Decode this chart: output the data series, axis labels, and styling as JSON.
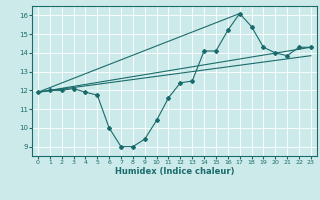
{
  "title": "",
  "xlabel": "Humidex (Indice chaleur)",
  "ylabel": "",
  "bg_color": "#cdeaea",
  "line_color": "#1a6b6b",
  "grid_color": "#ffffff",
  "xlim": [
    -0.5,
    23.5
  ],
  "ylim": [
    8.5,
    16.5
  ],
  "xticks": [
    0,
    1,
    2,
    3,
    4,
    5,
    6,
    7,
    8,
    9,
    10,
    11,
    12,
    13,
    14,
    15,
    16,
    17,
    18,
    19,
    20,
    21,
    22,
    23
  ],
  "yticks": [
    9,
    10,
    11,
    12,
    13,
    14,
    15,
    16
  ],
  "series": [
    [
      0,
      11.9
    ],
    [
      1,
      12.0
    ],
    [
      2,
      12.0
    ],
    [
      3,
      12.1
    ],
    [
      4,
      11.9
    ],
    [
      5,
      11.75
    ],
    [
      6,
      10.0
    ],
    [
      7,
      9.0
    ],
    [
      8,
      9.0
    ],
    [
      9,
      9.4
    ],
    [
      10,
      10.4
    ],
    [
      11,
      11.6
    ],
    [
      12,
      12.4
    ],
    [
      13,
      12.5
    ],
    [
      14,
      14.1
    ],
    [
      15,
      14.1
    ],
    [
      16,
      15.2
    ],
    [
      17,
      16.1
    ],
    [
      18,
      15.4
    ],
    [
      19,
      14.3
    ],
    [
      20,
      14.0
    ],
    [
      21,
      13.85
    ],
    [
      22,
      14.3
    ],
    [
      23,
      14.3
    ]
  ],
  "line2": [
    [
      0,
      11.9
    ],
    [
      23,
      14.3
    ]
  ],
  "line3": [
    [
      0,
      11.9
    ],
    [
      17,
      16.1
    ]
  ],
  "line4": [
    [
      0,
      11.9
    ],
    [
      23,
      13.85
    ]
  ]
}
